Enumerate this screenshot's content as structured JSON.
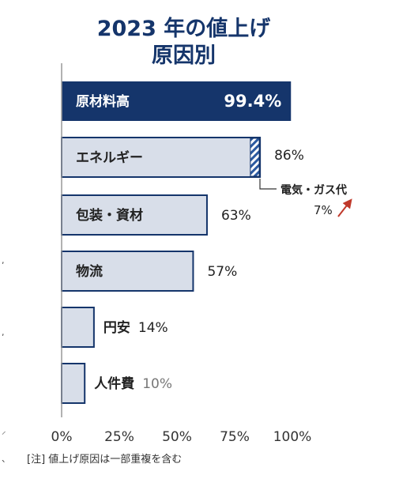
{
  "chart_data": {
    "type": "bar",
    "orientation": "horizontal",
    "title_line1": "2023 年の値上げ",
    "title_line2": "原因別",
    "categories": [
      "原材料高",
      "エネルギー",
      "包装・資材",
      "物流",
      "円安",
      "人件費"
    ],
    "values": [
      99.4,
      86,
      63,
      57,
      14,
      10
    ],
    "value_labels": [
      "99.4%",
      "86%",
      "63%",
      "57%",
      "14%",
      "10%"
    ],
    "highlight_index": 0,
    "sub_segment": {
      "category": "エネルギー",
      "label": "電気・ガス代",
      "value_label": "7%",
      "value": 7
    },
    "xlim": [
      0,
      100
    ],
    "x_ticks": [
      "0%",
      "25%",
      "50%",
      "75%",
      "100%"
    ],
    "grid": false,
    "note": "[注] 値上げ原因は一部重複を含む",
    "colors": {
      "title": "#15356b",
      "highlight_fill": "#15356b",
      "bar_fill": "#d8dee9",
      "bar_stroke": "#15356b",
      "hatch": "#2c5aa0",
      "arrow": "#c0392b"
    }
  }
}
